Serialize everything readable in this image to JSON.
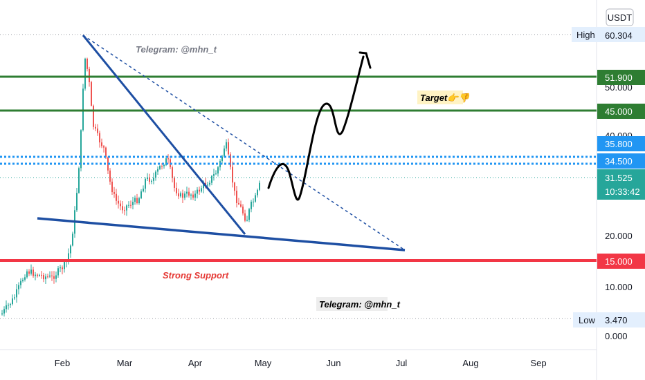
{
  "currency": "USDT",
  "chart_data": {
    "type": "candlestick",
    "y_scale": "log",
    "x_ticks": [
      "Feb",
      "Mar",
      "Apr",
      "May",
      "Jun",
      "Jul",
      "Aug",
      "Sep"
    ],
    "y_ticks": [
      "50.000",
      "40.000",
      "20.000",
      "10.000",
      "0.000"
    ],
    "levels": [
      {
        "name": "High",
        "value": "60.304",
        "color": "#787b86"
      },
      {
        "name": "",
        "value": "51.900",
        "color": "#2e7d32"
      },
      {
        "name": "",
        "value": "45.000",
        "color": "#2e7d32"
      },
      {
        "name": "",
        "value": "35.800",
        "color": "#2196f3"
      },
      {
        "name": "",
        "value": "34.500",
        "color": "#2196f3"
      },
      {
        "name": "",
        "value": "15.000",
        "color": "#f23645"
      },
      {
        "name": "Low",
        "value": "3.470",
        "color": "#787b86"
      }
    ],
    "last_price": {
      "value": "31.525",
      "countdown": "10:33:42",
      "color": "#26a69a"
    },
    "annotations": [
      {
        "text": "Telegram: @mhn_t",
        "color": "#787b86"
      },
      {
        "text": "Target👉👎",
        "color": "#000000"
      },
      {
        "text": "Strong Support",
        "color": "#e53935"
      },
      {
        "text": "Telegram: @mhn_t",
        "color": "#000000"
      }
    ],
    "up_color": "#26a69a",
    "down_color": "#ef5350"
  }
}
